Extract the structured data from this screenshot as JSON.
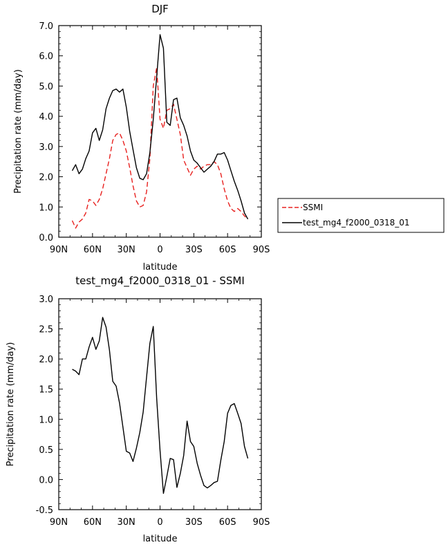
{
  "chart_data": [
    {
      "type": "line",
      "title": "DJF",
      "xlabel": "latitude",
      "ylabel": "Precipitation rate (mm/day)",
      "xlim": [
        90,
        -90
      ],
      "ylim": [
        0,
        7
      ],
      "x_ticks": [
        90,
        60,
        30,
        0,
        -30,
        -60,
        -90
      ],
      "x_tick_labels": [
        "90N",
        "60N",
        "30N",
        "0",
        "30S",
        "60S",
        "90S"
      ],
      "y_ticks": [
        0,
        1,
        2,
        3,
        4,
        5,
        6,
        7
      ],
      "y_tick_labels": [
        "0.0",
        "1.0",
        "2.0",
        "3.0",
        "4.0",
        "5.0",
        "6.0",
        "7.0"
      ],
      "legend_position": "outside-right",
      "series": [
        {
          "name": "SSMI",
          "color": "#e8201e",
          "dash": "dashed",
          "x": [
            78,
            75,
            72,
            69,
            66,
            63,
            60,
            57,
            54,
            51,
            48,
            45,
            42,
            39,
            36,
            33,
            30,
            27,
            24,
            21,
            18,
            15,
            12,
            9,
            6,
            3,
            0,
            -3,
            -6,
            -9,
            -12,
            -15,
            -18,
            -21,
            -24,
            -27,
            -30,
            -33,
            -36,
            -39,
            -42,
            -45,
            -48,
            -51,
            -54,
            -57,
            -60,
            -63,
            -66,
            -69,
            -72,
            -75,
            -78
          ],
          "y": [
            0.55,
            0.3,
            0.5,
            0.6,
            0.8,
            1.25,
            1.2,
            1.05,
            1.25,
            1.6,
            2.1,
            2.6,
            3.2,
            3.4,
            3.45,
            3.2,
            2.85,
            2.3,
            1.7,
            1.2,
            1.0,
            1.05,
            1.5,
            2.6,
            5.0,
            5.6,
            3.9,
            3.6,
            4.2,
            4.25,
            4.4,
            3.9,
            3.4,
            2.55,
            2.3,
            2.05,
            2.25,
            2.35,
            2.25,
            2.35,
            2.4,
            2.4,
            2.5,
            2.4,
            2.1,
            1.6,
            1.2,
            0.95,
            0.85,
            0.95,
            0.85,
            0.7,
            0.6
          ]
        },
        {
          "name": "test_mg4_f2000_0318_01",
          "color": "#000000",
          "dash": "solid",
          "x": [
            78,
            75,
            72,
            69,
            66,
            63,
            60,
            57,
            54,
            51,
            48,
            45,
            42,
            39,
            36,
            33,
            30,
            27,
            24,
            21,
            18,
            15,
            12,
            9,
            6,
            3,
            0,
            -3,
            -6,
            -9,
            -12,
            -15,
            -18,
            -21,
            -24,
            -27,
            -30,
            -33,
            -36,
            -39,
            -42,
            -45,
            -48,
            -51,
            -54,
            -57,
            -60,
            -63,
            -66,
            -69,
            -72,
            -75,
            -78
          ],
          "y": [
            2.2,
            2.4,
            2.1,
            2.25,
            2.6,
            2.85,
            3.45,
            3.6,
            3.2,
            3.55,
            4.25,
            4.6,
            4.85,
            4.9,
            4.8,
            4.9,
            4.3,
            3.5,
            2.9,
            2.3,
            1.95,
            1.9,
            2.1,
            2.8,
            3.9,
            5.3,
            6.7,
            6.25,
            3.8,
            3.7,
            4.55,
            4.6,
            3.95,
            3.7,
            3.35,
            2.85,
            2.55,
            2.45,
            2.3,
            2.15,
            2.25,
            2.35,
            2.5,
            2.75,
            2.75,
            2.8,
            2.55,
            2.2,
            1.85,
            1.55,
            1.2,
            0.8,
            0.6
          ]
        }
      ]
    },
    {
      "type": "line",
      "title": "test_mg4_f2000_0318_01 - SSMI",
      "xlabel": "latitude",
      "ylabel": "Precipitation rate (mm/day)",
      "xlim": [
        90,
        -90
      ],
      "ylim": [
        -0.5,
        3.0
      ],
      "x_ticks": [
        90,
        60,
        30,
        0,
        -30,
        -60,
        -90
      ],
      "x_tick_labels": [
        "90N",
        "60N",
        "30N",
        "0",
        "30S",
        "60S",
        "90S"
      ],
      "y_ticks": [
        -0.5,
        0,
        0.5,
        1,
        1.5,
        2,
        2.5,
        3
      ],
      "y_tick_labels": [
        "-0.5",
        "0.0",
        "0.5",
        "1.0",
        "1.5",
        "2.0",
        "2.5",
        "3.0"
      ],
      "series": [
        {
          "color": "#000000",
          "dash": "solid",
          "x": [
            78,
            75,
            72,
            69,
            66,
            63,
            60,
            57,
            54,
            51,
            48,
            45,
            42,
            39,
            36,
            33,
            30,
            27,
            24,
            21,
            18,
            15,
            12,
            9,
            6,
            3,
            0,
            -3,
            -6,
            -9,
            -12,
            -15,
            -18,
            -21,
            -24,
            -27,
            -30,
            -33,
            -36,
            -39,
            -42,
            -45,
            -48,
            -51,
            -54,
            -57,
            -60,
            -63,
            -66,
            -69,
            -72,
            -75,
            -78
          ],
          "y": [
            1.83,
            1.8,
            1.74,
            2.0,
            2.0,
            2.2,
            2.36,
            2.16,
            2.3,
            2.69,
            2.53,
            2.15,
            1.63,
            1.55,
            1.27,
            0.87,
            0.47,
            0.44,
            0.3,
            0.52,
            0.78,
            1.12,
            1.7,
            2.26,
            2.54,
            1.35,
            0.48,
            -0.23,
            0.05,
            0.35,
            0.33,
            -0.13,
            0.1,
            0.4,
            0.97,
            0.63,
            0.55,
            0.27,
            0.07,
            -0.1,
            -0.14,
            -0.1,
            -0.05,
            -0.03,
            0.32,
            0.63,
            1.1,
            1.23,
            1.26,
            1.1,
            0.93,
            0.55,
            0.35
          ]
        }
      ]
    }
  ]
}
